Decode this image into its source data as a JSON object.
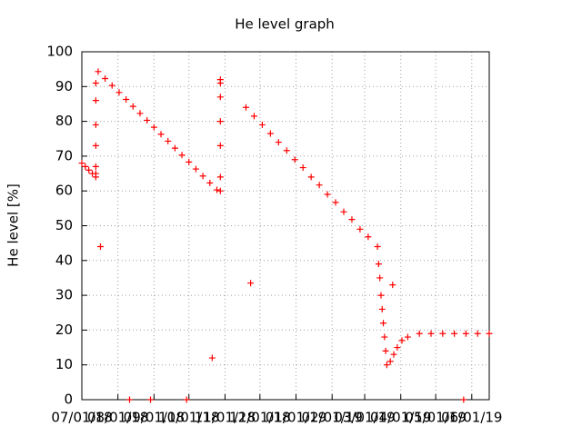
{
  "chart_data": {
    "type": "scatter",
    "title": "He level graph",
    "y_label": "He level [%]",
    "color": "#ff0000",
    "grid": true,
    "x": [
      0,
      3,
      6,
      9,
      12,
      12,
      12,
      12,
      12,
      12,
      12,
      16,
      14,
      20,
      26,
      32,
      38,
      44,
      50,
      56,
      62,
      68,
      74,
      80,
      86,
      92,
      98,
      104,
      110,
      116,
      119,
      119,
      119,
      119,
      119,
      119,
      119,
      112,
      141,
      148,
      155,
      162,
      169,
      176,
      183,
      190,
      197,
      204,
      211,
      218,
      225,
      232,
      239,
      246,
      254,
      145,
      255,
      256,
      257,
      258,
      259,
      260,
      261,
      262,
      267,
      265,
      268,
      271,
      275,
      280,
      290,
      300,
      310,
      320,
      330,
      340,
      350,
      41,
      59,
      90,
      328
    ],
    "values": [
      68,
      67,
      66,
      65,
      64,
      91,
      86,
      79,
      73,
      67,
      65,
      44,
      94.3,
      92.3,
      90.3,
      88.3,
      86.3,
      84.3,
      82.3,
      80.3,
      78.3,
      76.3,
      74.3,
      72.3,
      70.3,
      68.3,
      66.3,
      64.3,
      62.3,
      60.3,
      60,
      92,
      91,
      87,
      80,
      73,
      64,
      12,
      84,
      81.5,
      79,
      76.5,
      74,
      71.6,
      69,
      66.7,
      64,
      61.7,
      59,
      56.7,
      54,
      51.8,
      49,
      46.8,
      44,
      33.5,
      39,
      35,
      30,
      26,
      22,
      18,
      14,
      10,
      33,
      11,
      13,
      15,
      17,
      18,
      19,
      19,
      19,
      19,
      19,
      19,
      19,
      0,
      0,
      0,
      0
    ],
    "xlim": [
      0,
      350
    ],
    "xticks": [
      {
        "value": 0,
        "label": "07/01/18"
      },
      {
        "value": 31,
        "label": "08/01/18"
      },
      {
        "value": 62,
        "label": "09/01/18"
      },
      {
        "value": 92,
        "label": "10/01/18"
      },
      {
        "value": 123,
        "label": "11/01/18"
      },
      {
        "value": 153,
        "label": "12/01/18"
      },
      {
        "value": 184,
        "label": "01/01/19"
      },
      {
        "value": 215,
        "label": "02/01/19"
      },
      {
        "value": 243,
        "label": "03/01/19"
      },
      {
        "value": 274,
        "label": "04/01/19"
      },
      {
        "value": 304,
        "label": "05/01/19"
      },
      {
        "value": 335,
        "label": "06/01/19"
      }
    ],
    "ylim": [
      0,
      100
    ],
    "yticks": [
      0,
      10,
      20,
      30,
      40,
      50,
      60,
      70,
      80,
      90,
      100
    ]
  }
}
